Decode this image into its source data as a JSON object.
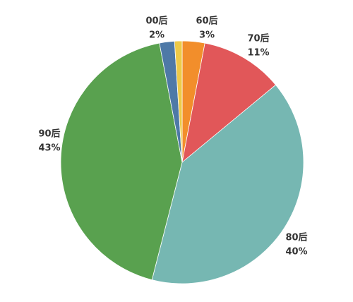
{
  "chart_data": {
    "type": "pie",
    "categories": [
      "60后",
      "70后",
      "80后",
      "90后",
      "00后",
      null
    ],
    "values": [
      3,
      11,
      40,
      43,
      2,
      1
    ],
    "value_labels": [
      "3%",
      "11%",
      "40%",
      "43%",
      "2%",
      null
    ],
    "colors": [
      "#f28e2b",
      "#e15759",
      "#76b7b2",
      "#59a14f",
      "#4e79a7",
      "#edc948"
    ]
  }
}
